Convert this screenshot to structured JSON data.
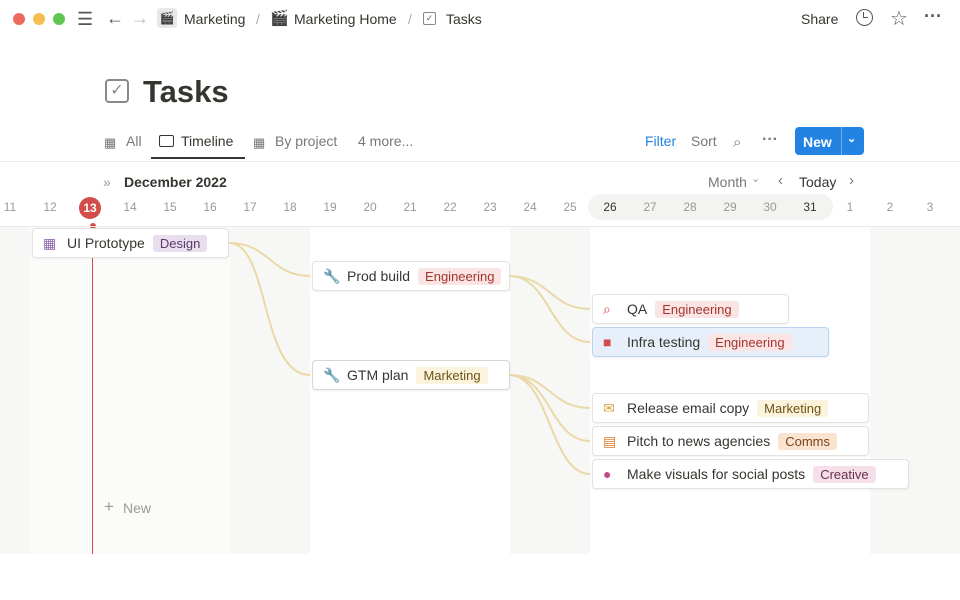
{
  "breadcrumb": {
    "items": [
      "Marketing",
      "Marketing Home",
      "Tasks"
    ],
    "sep": "/"
  },
  "topbar": {
    "share": "Share"
  },
  "page": {
    "title": "Tasks"
  },
  "views": {
    "all": "All",
    "timeline": "Timeline",
    "by_project": "By project",
    "more": "4 more...",
    "filter": "Filter",
    "sort": "Sort",
    "new": "New"
  },
  "timeline": {
    "month_label": "December 2022",
    "scale": "Month",
    "today": "Today",
    "today_day": "13",
    "days": [
      "11",
      "12",
      "13",
      "14",
      "15",
      "16",
      "17",
      "18",
      "19",
      "20",
      "21",
      "22",
      "23",
      "24",
      "25",
      "26",
      "27",
      "28",
      "29",
      "30",
      "31",
      "1",
      "2",
      "3"
    ],
    "new_label": "New"
  },
  "tasks": [
    {
      "name": "UI Prototype",
      "tag": "Design",
      "icon": "grid-icon"
    },
    {
      "name": "Prod build",
      "tag": "Engineering",
      "icon": "wrench-icon"
    },
    {
      "name": "GTM plan",
      "tag": "Marketing",
      "icon": "wrench-icon"
    },
    {
      "name": "QA",
      "tag": "Engineering",
      "icon": "search-icon"
    },
    {
      "name": "Infra testing",
      "tag": "Engineering",
      "icon": "jar-icon"
    },
    {
      "name": "Release email copy",
      "tag": "Marketing",
      "icon": "envelope-icon"
    },
    {
      "name": "Pitch to news agencies",
      "tag": "Comms",
      "icon": "newspaper-icon"
    },
    {
      "name": "Make visuals for social posts",
      "tag": "Creative",
      "icon": "palette-icon"
    }
  ],
  "colors": {
    "accent": "#2383e2",
    "today": "#d44c47",
    "dependency": "#e8d5a0",
    "Design": "#e8deee",
    "Engineering": "#fbe4e4",
    "Marketing": "#fbf3db",
    "Comms": "#fae3cf",
    "Creative": "#f5e0e9"
  }
}
